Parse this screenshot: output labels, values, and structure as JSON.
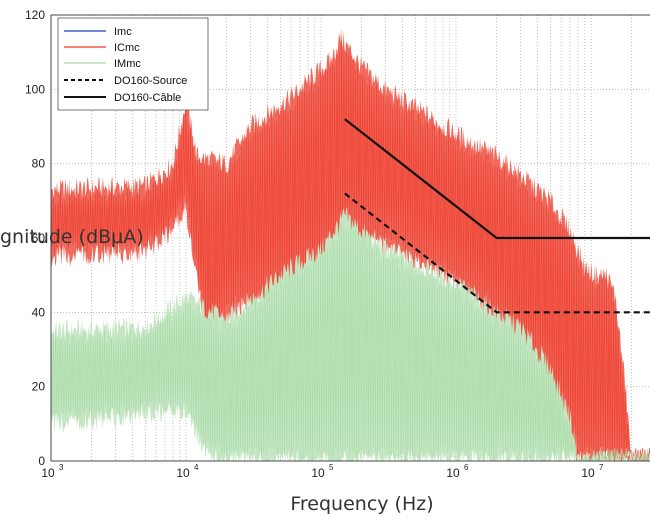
{
  "chart_data": {
    "type": "line",
    "title": "",
    "xlabel": "Frequency (Hz)",
    "ylabel_visible": "gnitude (dBµA)",
    "x_scale": "log",
    "xlim": [
      1000,
      30000000
    ],
    "ylim": [
      0,
      120
    ],
    "grid": true,
    "legend_position": "top-left",
    "x_ticks": [
      {
        "base": "10",
        "exp": "3",
        "value": 1000
      },
      {
        "base": "10",
        "exp": "4",
        "value": 10000
      },
      {
        "base": "10",
        "exp": "5",
        "value": 100000
      },
      {
        "base": "10",
        "exp": "6",
        "value": 1000000
      },
      {
        "base": "10",
        "exp": "7",
        "value": 10000000
      }
    ],
    "y_ticks": [
      "0",
      "20",
      "40",
      "60",
      "80",
      "100",
      "120"
    ],
    "colors": {
      "Imc": "#1f3fbf",
      "ICmc": "#ee3b2b",
      "ICmc_fill": "#ef6a5c",
      "IMmc": "#a6dba6",
      "IMmc_fill": "#c4e6c2",
      "limits": "#111111",
      "grid": "#9a9a9a"
    },
    "series": [
      {
        "name": "Imc",
        "style": "line"
      },
      {
        "name": "ICmc",
        "style": "noise-envelope",
        "upper": [
          [
            1000,
            73
          ],
          [
            5000,
            74
          ],
          [
            8000,
            80
          ],
          [
            10000,
            97
          ],
          [
            12000,
            82
          ],
          [
            20000,
            80
          ],
          [
            30000,
            90
          ],
          [
            60000,
            98
          ],
          [
            120000,
            108
          ],
          [
            140000,
            114
          ],
          [
            200000,
            106
          ],
          [
            300000,
            100
          ],
          [
            500000,
            95
          ],
          [
            1000000,
            88
          ],
          [
            2000000,
            82
          ],
          [
            3000000,
            77
          ],
          [
            5000000,
            70
          ],
          [
            7000000,
            62
          ],
          [
            9000000,
            52
          ],
          [
            11000000,
            50
          ],
          [
            13000000,
            50
          ],
          [
            15000000,
            45
          ],
          [
            18000000,
            20
          ],
          [
            20000000,
            0
          ]
        ],
        "lower": [
          [
            1000,
            55
          ],
          [
            5000,
            56
          ],
          [
            8000,
            62
          ],
          [
            10000,
            68
          ],
          [
            15000,
            28
          ],
          [
            20000,
            40
          ],
          [
            50000,
            44
          ],
          [
            100000,
            50
          ],
          [
            160000,
            60
          ],
          [
            300000,
            58
          ],
          [
            600000,
            52
          ],
          [
            1000000,
            48
          ],
          [
            2000000,
            36
          ],
          [
            4000000,
            24
          ],
          [
            6000000,
            10
          ],
          [
            8000000,
            0
          ],
          [
            20000000,
            0
          ]
        ]
      },
      {
        "name": "IMmc",
        "style": "noise-envelope",
        "upper": [
          [
            1000,
            35
          ],
          [
            5000,
            36
          ],
          [
            10000,
            44
          ],
          [
            20000,
            38
          ],
          [
            50000,
            50
          ],
          [
            100000,
            57
          ],
          [
            150000,
            66
          ],
          [
            200000,
            62
          ],
          [
            300000,
            57
          ],
          [
            600000,
            52
          ],
          [
            1000000,
            48
          ],
          [
            2000000,
            40
          ],
          [
            3000000,
            36
          ],
          [
            5000000,
            25
          ],
          [
            7000000,
            12
          ],
          [
            8000000,
            2
          ],
          [
            8500000,
            0
          ]
        ],
        "lower": [
          [
            1000,
            10
          ],
          [
            5000,
            12
          ],
          [
            10000,
            14
          ],
          [
            14000,
            2
          ],
          [
            20000,
            0
          ],
          [
            8500000,
            0
          ]
        ]
      },
      {
        "name": "DO160-Source",
        "style": "dashed",
        "points": [
          [
            150000,
            72
          ],
          [
            2000000,
            40
          ],
          [
            30000000,
            40
          ]
        ]
      },
      {
        "name": "DO160-Câble",
        "style": "solid",
        "points": [
          [
            150000,
            92
          ],
          [
            2000000,
            60
          ],
          [
            30000000,
            60
          ]
        ]
      }
    ]
  }
}
